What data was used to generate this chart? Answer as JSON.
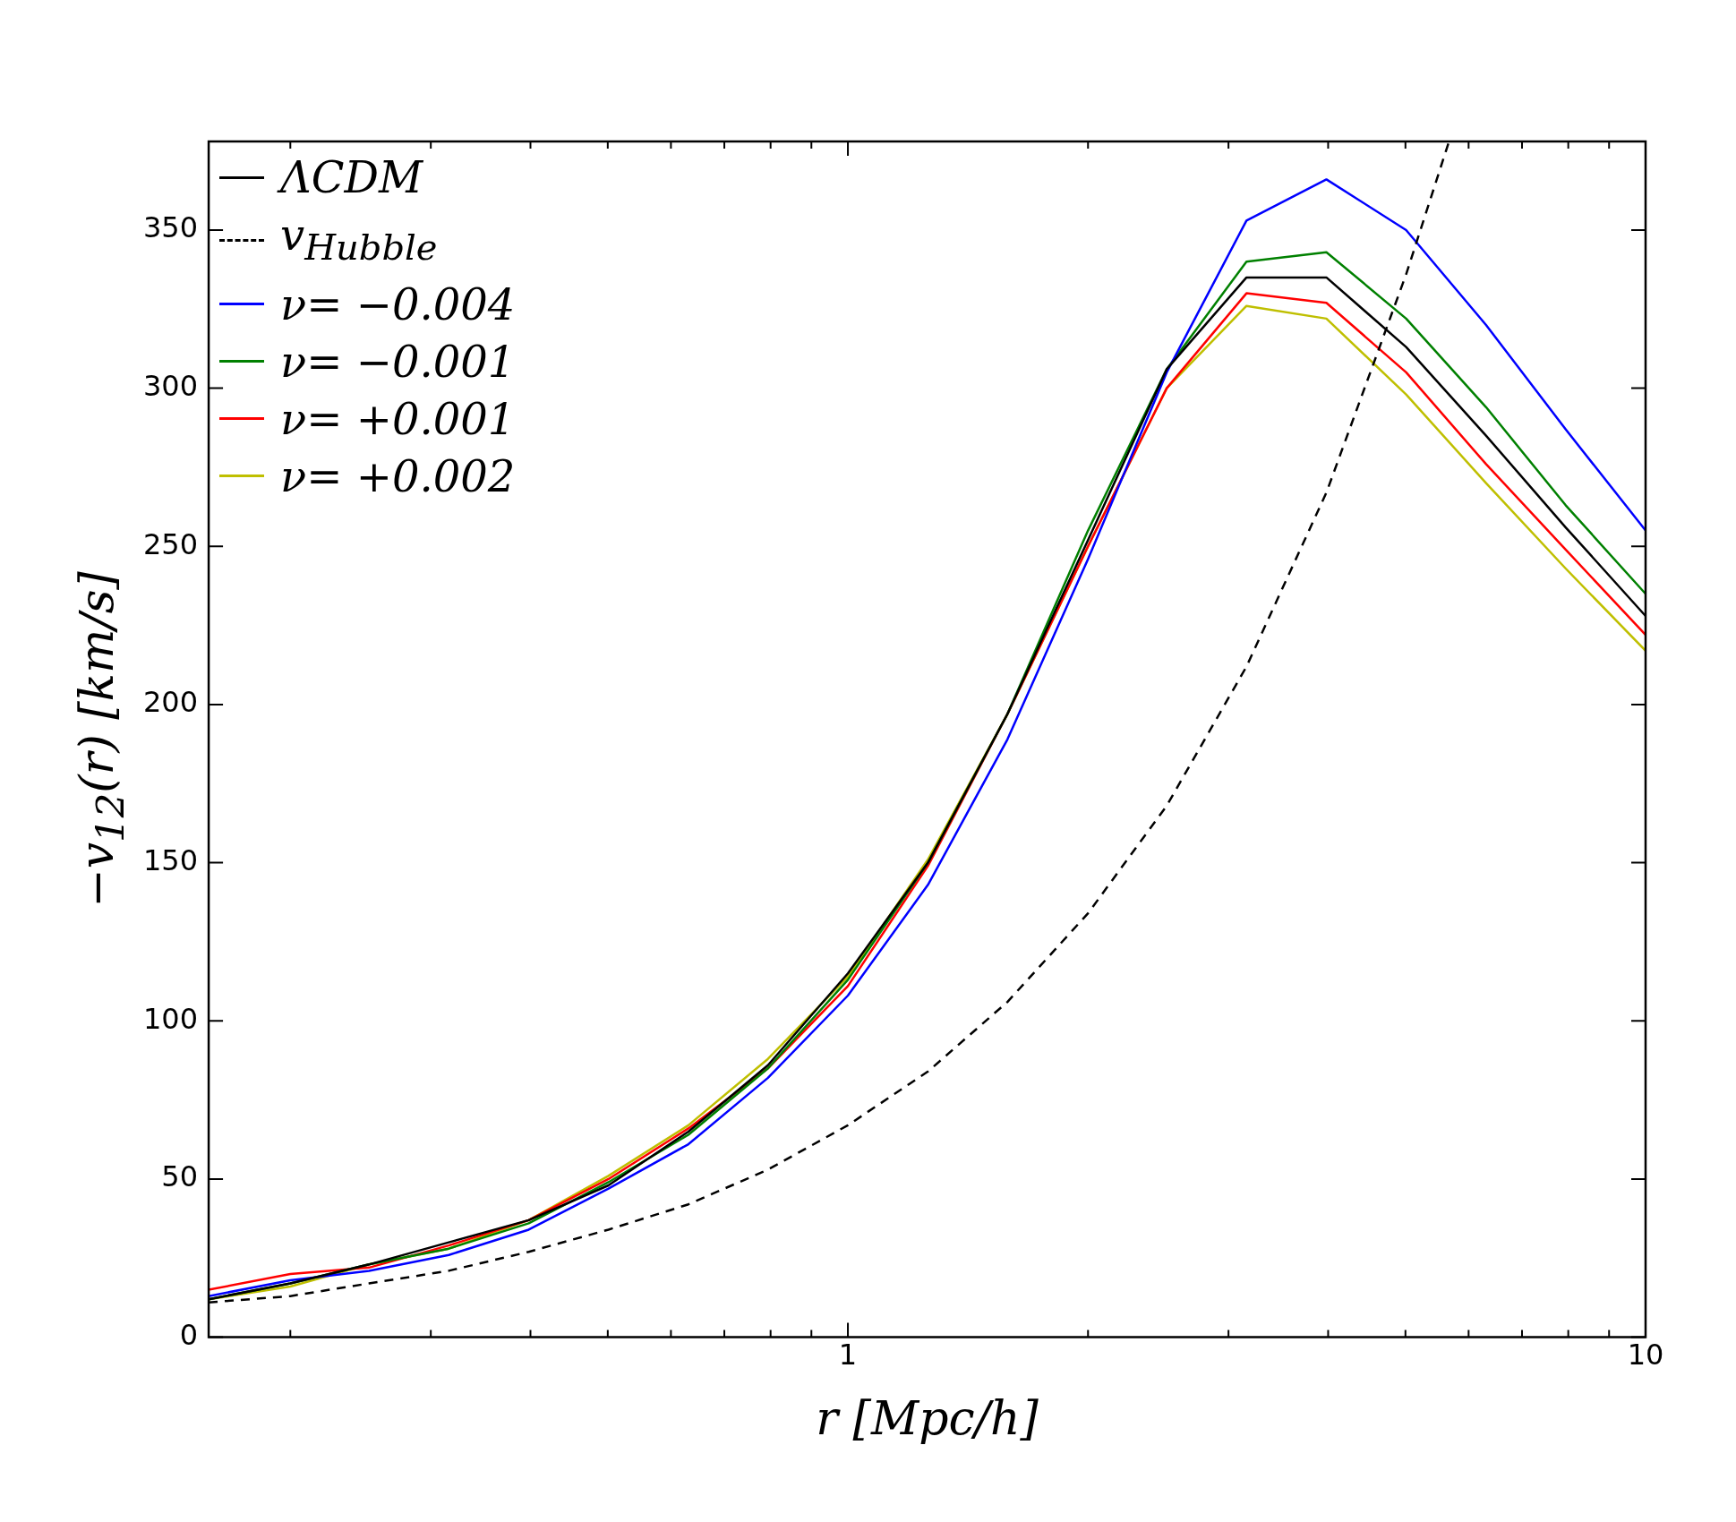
{
  "chart_data": {
    "type": "line",
    "xlabel": "r [Mpc/h]",
    "ylabel": "−v$_{12}$(r) [km/s]",
    "log": "x",
    "xlim": [
      0.158,
      10
    ],
    "ylim": [
      0,
      378
    ],
    "xticks": [
      {
        "value": 0.2,
        "label": null
      },
      {
        "value": 0.3,
        "label": null
      },
      {
        "value": 0.4,
        "label": null
      },
      {
        "value": 0.5,
        "label": null
      },
      {
        "value": 0.6,
        "label": null
      },
      {
        "value": 0.7,
        "label": null
      },
      {
        "value": 0.8,
        "label": null
      },
      {
        "value": 0.9,
        "label": null
      },
      1,
      {
        "value": 2,
        "label": null
      },
      {
        "value": 3,
        "label": null
      },
      {
        "value": 4,
        "label": null
      },
      {
        "value": 5,
        "label": null
      },
      {
        "value": 6,
        "label": null
      },
      {
        "value": 7,
        "label": null
      },
      {
        "value": 8,
        "label": null
      },
      {
        "value": 9,
        "label": null
      },
      10
    ],
    "yticks": [
      0,
      50,
      100,
      150,
      200,
      250,
      300,
      350
    ],
    "grid": false,
    "legend": "top left",
    "marker": "none",
    "x": [
      0.158,
      0.2,
      0.251,
      0.316,
      0.398,
      0.501,
      0.631,
      0.794,
      1,
      1.26,
      1.585,
      2,
      2.51,
      3.16,
      3.98,
      5.01,
      6.31,
      7.94,
      10
    ],
    "series": [
      {
        "name": "ΛCDM",
        "color": "#000000",
        "line_style": "solid",
        "values": [
          12,
          17,
          23,
          30,
          37,
          48,
          65,
          86,
          115,
          150,
          197,
          252,
          306,
          335,
          335,
          313,
          285,
          256,
          228
        ]
      },
      {
        "name": "v$_{Hubble}$",
        "color": "#000000",
        "line_style": "dashed",
        "x": [
          0.158,
          0.2,
          0.251,
          0.316,
          0.398,
          0.501,
          0.631,
          0.794,
          1,
          1.26,
          1.585,
          2,
          2.51,
          3.16,
          3.98,
          5.01,
          5.67
        ],
        "values": [
          11,
          13,
          17,
          21,
          27,
          34,
          42,
          53,
          67,
          84,
          106,
          134,
          168,
          212,
          267,
          336,
          378
        ]
      },
      {
        "name": "ν= −0.004",
        "color": "#0000ff",
        "line_style": "solid",
        "values": [
          13,
          18,
          21,
          26,
          34,
          47,
          61,
          82,
          108,
          143,
          189,
          246,
          305,
          353,
          366,
          350,
          320,
          287,
          255
        ]
      },
      {
        "name": "ν= −0.001",
        "color": "#008000",
        "line_style": "solid",
        "values": [
          12,
          17,
          23,
          28,
          36,
          49,
          64,
          85,
          113,
          150,
          197,
          255,
          306,
          340,
          343,
          322,
          294,
          263,
          235
        ]
      },
      {
        "name": "ν= +0.001",
        "color": "#ff0000",
        "line_style": "solid",
        "values": [
          15,
          20,
          22,
          29,
          37,
          50,
          66,
          85,
          111,
          149,
          197,
          250,
          300,
          330,
          327,
          305,
          276,
          249,
          222
        ]
      },
      {
        "name": "ν= +0.002",
        "color": "#bfbf00",
        "line_style": "solid",
        "values": [
          12,
          16,
          23,
          28,
          37,
          51,
          67,
          88,
          114,
          151,
          197,
          250,
          300,
          326,
          322,
          298,
          270,
          243,
          217
        ]
      }
    ]
  }
}
